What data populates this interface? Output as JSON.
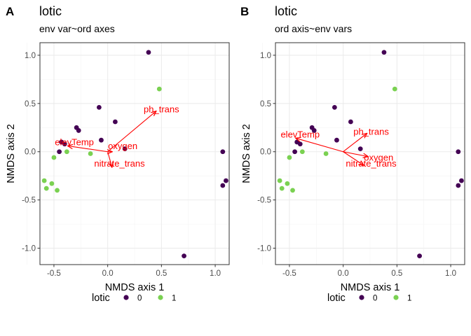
{
  "chart_data": [
    {
      "type": "scatter",
      "panel_tag": "A",
      "title": "lotic",
      "subtitle": "env var~ord axes",
      "xlabel": "NMDS axis 1",
      "ylabel": "NMDS axis 2",
      "xlim": [
        -0.63,
        1.13
      ],
      "ylim": [
        -1.17,
        1.13
      ],
      "x_ticks": [
        -0.5,
        0.0,
        0.5,
        1.0
      ],
      "x_tick_labels": [
        "-0.5",
        "0.0",
        "0.5",
        "1.0"
      ],
      "y_ticks": [
        -1.0,
        -0.5,
        0.0,
        0.5,
        1.0
      ],
      "y_tick_labels": [
        "-1.0",
        "-0.5",
        "0.0",
        "0.5",
        "1.0"
      ],
      "grid": true,
      "series": [
        {
          "name": "0",
          "color": "#440154",
          "points": [
            {
              "x": 0.38,
              "y": 1.03
            },
            {
              "x": -0.08,
              "y": 0.46
            },
            {
              "x": 0.07,
              "y": 0.31
            },
            {
              "x": -0.29,
              "y": 0.25
            },
            {
              "x": -0.27,
              "y": 0.22
            },
            {
              "x": -0.43,
              "y": 0.1
            },
            {
              "x": -0.4,
              "y": 0.08
            },
            {
              "x": -0.06,
              "y": 0.12
            },
            {
              "x": 0.16,
              "y": 0.03
            },
            {
              "x": -0.45,
              "y": 0.0
            },
            {
              "x": 0.71,
              "y": -1.08
            },
            {
              "x": 1.07,
              "y": 0.0
            },
            {
              "x": 1.1,
              "y": -0.3
            },
            {
              "x": 1.07,
              "y": -0.35
            }
          ]
        },
        {
          "name": "1",
          "color": "#7ad151",
          "points": [
            {
              "x": 0.48,
              "y": 0.65
            },
            {
              "x": -0.38,
              "y": 0.0
            },
            {
              "x": -0.16,
              "y": -0.02
            },
            {
              "x": -0.5,
              "y": -0.06
            },
            {
              "x": -0.59,
              "y": -0.3
            },
            {
              "x": -0.57,
              "y": -0.38
            },
            {
              "x": -0.52,
              "y": -0.33
            },
            {
              "x": -0.47,
              "y": -0.4
            }
          ]
        }
      ],
      "vectors": [
        {
          "label": "ph_trans",
          "x": 0.45,
          "y": 0.42,
          "label_x": 0.5,
          "label_y": 0.44
        },
        {
          "label": "elevTemp",
          "x": -0.37,
          "y": 0.06,
          "label_x": -0.31,
          "label_y": 0.1
        },
        {
          "label": "oxygen",
          "x": 0.04,
          "y": 0.0,
          "label_x": 0.14,
          "label_y": 0.06
        },
        {
          "label": "nitrate_trans",
          "x": 0.04,
          "y": -0.16,
          "label_x": 0.11,
          "label_y": -0.12
        }
      ],
      "vector_color": "#ff0000",
      "legend": {
        "title": "lotic",
        "position": "bottom",
        "items": [
          "0",
          "1"
        ]
      }
    },
    {
      "type": "scatter",
      "panel_tag": "B",
      "title": "lotic",
      "subtitle": "ord axis~env vars",
      "xlabel": "NMDS axis 1",
      "ylabel": "NMDS axis 2",
      "xlim": [
        -0.63,
        1.13
      ],
      "ylim": [
        -1.17,
        1.13
      ],
      "x_ticks": [
        -0.5,
        0.0,
        0.5,
        1.0
      ],
      "x_tick_labels": [
        "-0.5",
        "0.0",
        "0.5",
        "1.0"
      ],
      "y_ticks": [
        -1.0,
        -0.5,
        0.0,
        0.5,
        1.0
      ],
      "y_tick_labels": [
        "-1.0",
        "-0.5",
        "0.0",
        "0.5",
        "1.0"
      ],
      "grid": true,
      "series": [
        {
          "name": "0",
          "color": "#440154",
          "points": [
            {
              "x": 0.38,
              "y": 1.03
            },
            {
              "x": -0.08,
              "y": 0.46
            },
            {
              "x": 0.07,
              "y": 0.31
            },
            {
              "x": -0.29,
              "y": 0.25
            },
            {
              "x": -0.27,
              "y": 0.22
            },
            {
              "x": -0.43,
              "y": 0.1
            },
            {
              "x": -0.4,
              "y": 0.08
            },
            {
              "x": -0.06,
              "y": 0.12
            },
            {
              "x": 0.16,
              "y": 0.03
            },
            {
              "x": -0.45,
              "y": 0.0
            },
            {
              "x": 0.71,
              "y": -1.08
            },
            {
              "x": 1.07,
              "y": 0.0
            },
            {
              "x": 1.1,
              "y": -0.3
            },
            {
              "x": 1.07,
              "y": -0.35
            }
          ]
        },
        {
          "name": "1",
          "color": "#7ad151",
          "points": [
            {
              "x": 0.48,
              "y": 0.65
            },
            {
              "x": -0.38,
              "y": 0.0
            },
            {
              "x": -0.16,
              "y": -0.02
            },
            {
              "x": -0.5,
              "y": -0.06
            },
            {
              "x": -0.59,
              "y": -0.3
            },
            {
              "x": -0.57,
              "y": -0.38
            },
            {
              "x": -0.52,
              "y": -0.33
            },
            {
              "x": -0.47,
              "y": -0.4
            }
          ]
        }
      ],
      "vectors": [
        {
          "label": "ph_trans",
          "x": 0.22,
          "y": 0.19,
          "label_x": 0.26,
          "label_y": 0.21
        },
        {
          "label": "elevTemp",
          "x": -0.44,
          "y": 0.14,
          "label_x": -0.4,
          "label_y": 0.18
        },
        {
          "label": "oxygen",
          "x": 0.23,
          "y": -0.05,
          "label_x": 0.33,
          "label_y": -0.06
        },
        {
          "label": "nitrate_trans",
          "x": 0.19,
          "y": -0.14,
          "label_x": 0.26,
          "label_y": -0.12
        }
      ],
      "vector_color": "#ff0000",
      "legend": {
        "title": "lotic",
        "position": "bottom",
        "items": [
          "0",
          "1"
        ]
      }
    }
  ]
}
